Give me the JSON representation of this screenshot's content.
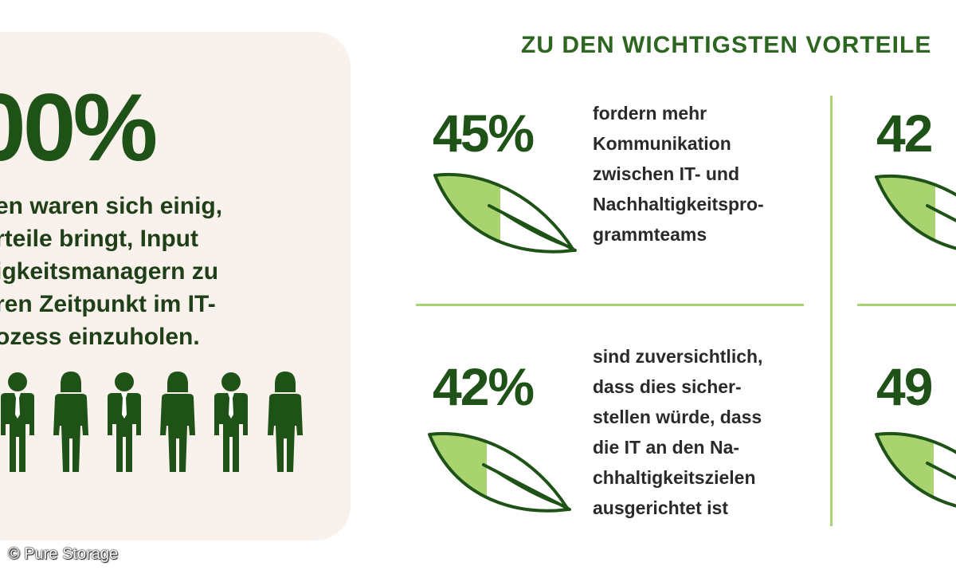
{
  "left_panel": {
    "big_percent": "00%",
    "lines": [
      "en waren sich einig,",
      "rteile bringt, Input",
      "igkeitsmanagern zu",
      "ren Zeitpunkt im IT-",
      "ozess einzuholen."
    ],
    "people_icons": [
      "male-person-icon",
      "female-person-icon",
      "male-person-icon",
      "female-person-icon",
      "male-person-icon",
      "female-person-icon"
    ]
  },
  "heading": "ZU DEN WICHTIGSTEN VORTEILE",
  "stats": [
    {
      "value": "45%",
      "lines": [
        "fordern mehr",
        "Kommunikation",
        "zwischen IT- und",
        "Nachhaltigkeitspro-",
        "grammteams"
      ]
    },
    {
      "value": "42%",
      "lines": [
        "sind zuversichtlich,",
        "dass dies sicher-",
        "stellen würde, dass",
        "die IT an den Na-",
        "chhaltigkeitszielen",
        "ausgerichtet ist"
      ]
    },
    {
      "value": "42"
    },
    {
      "value": "49"
    }
  ],
  "copyright": "© Pure Storage",
  "colors": {
    "dark_green": "#1e5217",
    "light_green": "#a9d36f",
    "card_bg": "#f8f1ec"
  }
}
